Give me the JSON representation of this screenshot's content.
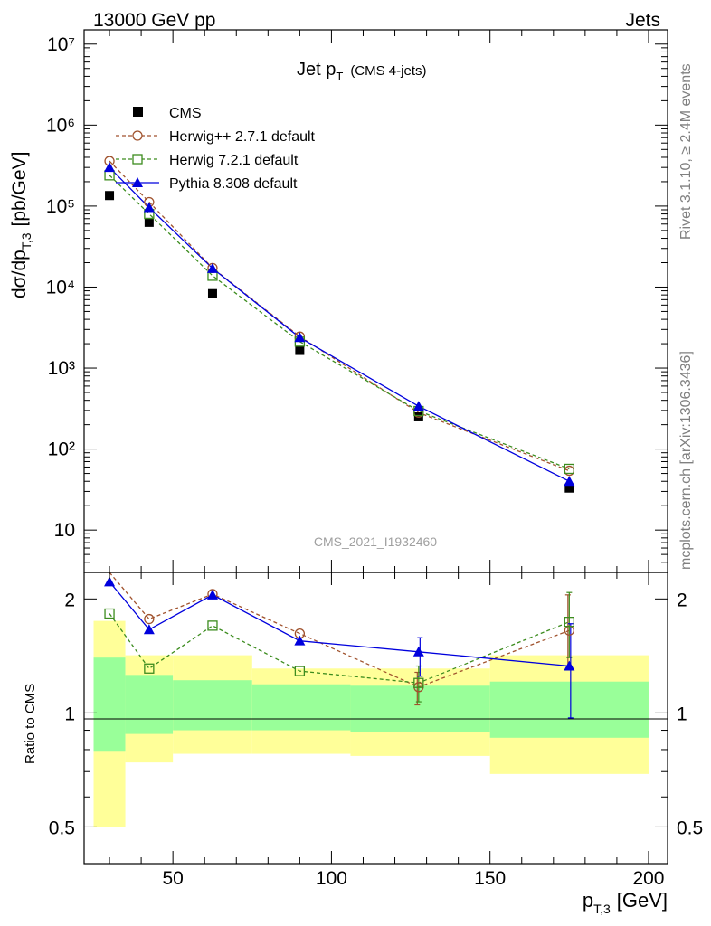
{
  "header": {
    "energy_label": "13000 GeV pp",
    "category_label": "Jets"
  },
  "side_labels": {
    "rivet": "Rivet 3.1.10, ≥ 2.4M events",
    "mcplots": "mcplots.cern.ch [arXiv:1306.3436]"
  },
  "watermark": "CMS_2021_I1932460",
  "chart_data": [
    {
      "type": "line",
      "title": "Jet p_T (CMS 4-jets)",
      "title_main": "Jet p",
      "title_sub": "T",
      "title_note": "(CMS 4-jets)",
      "ylabel_main": "dσ/dp",
      "ylabel_sub": "T,3",
      "ylabel_unit": "[pb/GeV]",
      "yscale": "log",
      "ylim": [
        3,
        15000000
      ],
      "xlim": [
        22,
        206
      ],
      "y_tick_labels": [
        "10",
        "10²",
        "10³",
        "10⁴",
        "10⁵",
        "10⁶",
        "10⁷"
      ],
      "legend_position": "top-left",
      "bins": [
        [
          25,
          35
        ],
        [
          35,
          50
        ],
        [
          50,
          75
        ],
        [
          75,
          106
        ],
        [
          106,
          150
        ],
        [
          150,
          200
        ]
      ],
      "x": [
        30,
        42.5,
        62.5,
        90,
        127.5,
        175
      ],
      "series": [
        {
          "name": "CMS",
          "marker": "square-filled",
          "line": "none",
          "color": "#000000",
          "values": [
            135000,
            63000,
            8300,
            1650,
            250,
            33
          ]
        },
        {
          "name": "Herwig++ 2.7.1 default",
          "marker": "circle-open",
          "line": "dashed",
          "color": "#a0522d",
          "values": [
            360000,
            112000,
            17200,
            2450,
            282,
            54
          ]
        },
        {
          "name": "Herwig 7.2.1 default",
          "marker": "square-open",
          "line": "dashed",
          "color": "#3c8c1e",
          "values": [
            240000,
            80000,
            13800,
            2120,
            295,
            57
          ]
        },
        {
          "name": "Pythia 8.308 default",
          "marker": "triangle-filled",
          "line": "solid",
          "color": "#0000dd",
          "values": [
            300000,
            96000,
            17000,
            2380,
            338,
            40
          ]
        }
      ]
    },
    {
      "type": "line",
      "ylabel": "Ratio to CMS",
      "xlabel_main": "p",
      "xlabel_sub": "T,3",
      "xlabel_unit": "[GeV]",
      "yscale": "log",
      "ylim": [
        0.4,
        2.35
      ],
      "xlim": [
        22,
        206
      ],
      "y_tick_labels": [
        "0.5",
        "1",
        "2"
      ],
      "x_tick_labels": [
        "50",
        "100",
        "150",
        "200"
      ],
      "bins": [
        [
          25,
          35
        ],
        [
          35,
          50
        ],
        [
          50,
          75
        ],
        [
          75,
          106
        ],
        [
          106,
          150
        ],
        [
          150,
          200
        ]
      ],
      "uncertainty_bands": {
        "stat_low": [
          0.79,
          0.88,
          0.9,
          0.9,
          0.89,
          0.86
        ],
        "stat_high": [
          1.4,
          1.26,
          1.22,
          1.19,
          1.18,
          1.21
        ],
        "total_low": [
          0.5,
          0.74,
          0.78,
          0.78,
          0.77,
          0.69
        ],
        "total_high": [
          1.75,
          1.42,
          1.42,
          1.31,
          1.31,
          1.42
        ]
      },
      "x": [
        30,
        42.5,
        62.5,
        90,
        127.5,
        175
      ],
      "series": [
        {
          "name": "Herwig++ 2.7.1 default",
          "color": "#a0522d",
          "values": [
            2.6,
            1.77,
            2.06,
            1.62,
            1.17,
            1.65
          ]
        },
        {
          "name": "Herwig 7.2.1 default",
          "color": "#3c8c1e",
          "values": [
            1.83,
            1.31,
            1.7,
            1.29,
            1.2,
            1.74
          ]
        },
        {
          "name": "Pythia 8.308 default",
          "color": "#0000dd",
          "values": [
            2.22,
            1.66,
            2.05,
            1.55,
            1.45,
            1.33
          ]
        }
      ]
    }
  ]
}
